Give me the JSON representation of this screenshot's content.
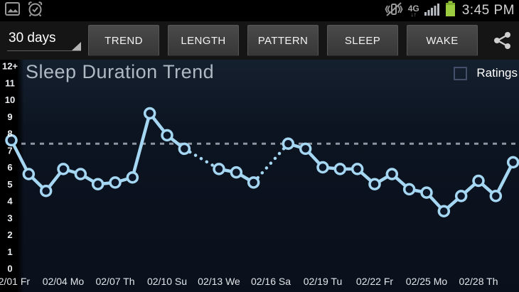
{
  "status_bar": {
    "time": "3:45 PM",
    "network_label": "4G",
    "network_arrows": "↓↑"
  },
  "toolbar": {
    "range_selector_value": "30 days",
    "buttons": [
      "TREND",
      "LENGTH",
      "PATTERN",
      "SLEEP",
      "WAKE"
    ]
  },
  "chart_header": {
    "title": "Sleep Duration Trend",
    "ratings_label": "Ratings",
    "ratings_checked": false
  },
  "chart_data": {
    "type": "line",
    "title": "Sleep Duration Trend",
    "x_dates": [
      "02/01",
      "02/02",
      "02/03",
      "02/04",
      "02/05",
      "02/06",
      "02/07",
      "02/08",
      "02/09",
      "02/10",
      "02/11",
      "02/12",
      "02/13",
      "02/14",
      "02/15",
      "02/16",
      "02/17",
      "02/18",
      "02/19",
      "02/20",
      "02/21",
      "02/22",
      "02/23",
      "02/24",
      "02/25",
      "02/26",
      "02/27",
      "02/28",
      "03/01",
      "03/02"
    ],
    "values": [
      7.6,
      5.6,
      4.6,
      5.9,
      5.6,
      5.0,
      5.1,
      5.4,
      9.2,
      7.9,
      7.1,
      null,
      5.9,
      5.7,
      5.1,
      null,
      7.4,
      7.1,
      6.0,
      5.9,
      5.9,
      5.0,
      5.6,
      4.7,
      4.5,
      3.4,
      4.3,
      5.2,
      4.3,
      6.3
    ],
    "missing_data_shown_dotted": [
      "02/12",
      "02/16"
    ],
    "x_tick_indices": [
      0,
      3,
      6,
      9,
      12,
      15,
      18,
      21,
      24,
      27
    ],
    "x_tick_labels": [
      "02/01 Fr",
      "02/04 Mo",
      "02/07 Th",
      "02/10 Su",
      "02/13 We",
      "02/16 Sa",
      "02/19 Tu",
      "02/22 Fr",
      "02/25 Mo",
      "02/28 Th"
    ],
    "y_tick_labels": [
      "12+",
      "11",
      "10",
      "9",
      "8",
      "7",
      "6",
      "5",
      "4",
      "3",
      "2",
      "1",
      "0"
    ],
    "ylim": [
      0,
      12.6
    ],
    "reference_line_value": 7.4,
    "grid": false,
    "legend": "none",
    "colors": {
      "line": "#a5d7f3",
      "marker_fill": "#0d1626",
      "reference_line": "#8c96a2",
      "background": "#0c1421",
      "axis_text": "#e6eaee"
    }
  }
}
